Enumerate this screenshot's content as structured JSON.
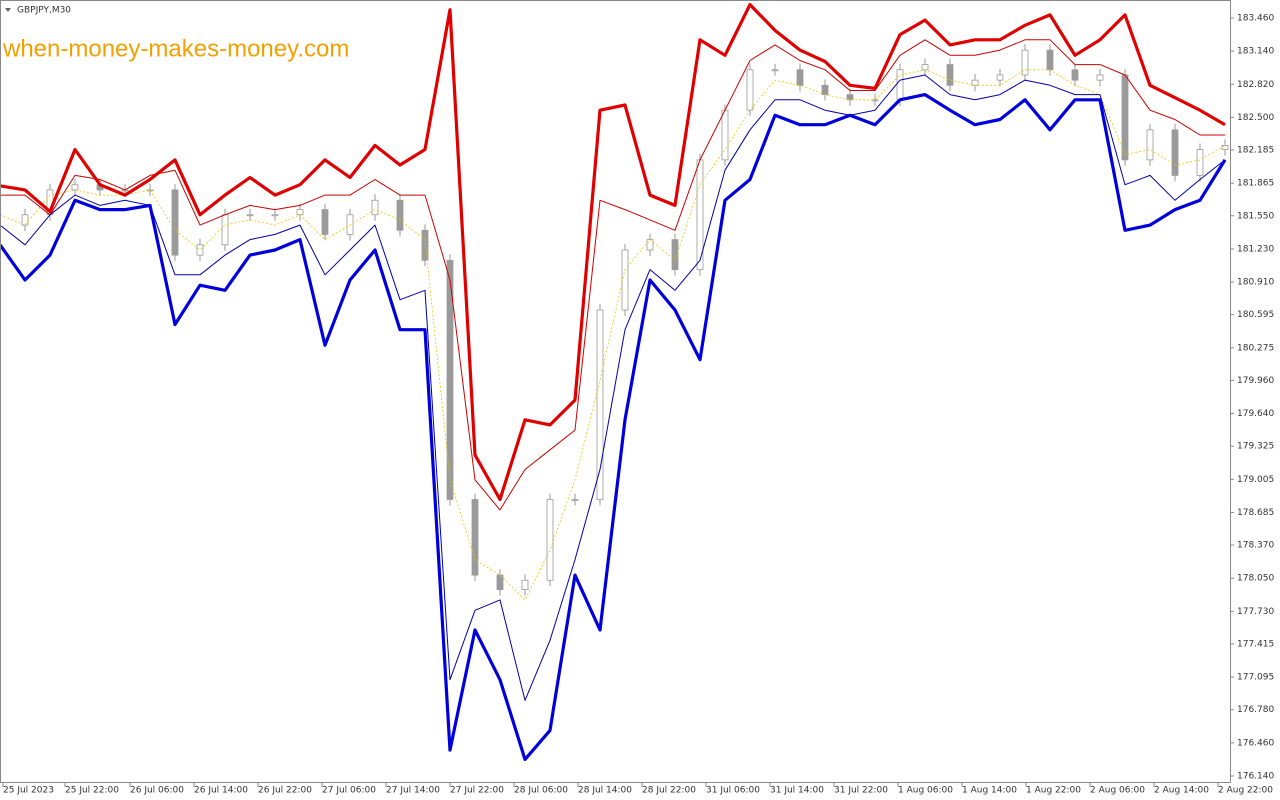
{
  "chart_data": {
    "type": "line",
    "symbol": "GBPJPY,M30",
    "watermark": "when-money-makes-money.com",
    "xlim": [
      0,
      49.2
    ],
    "xticks": [
      {
        "value": 0.12,
        "label": "25 Jul 2023"
      },
      {
        "value": 2.6,
        "label": "25 Jul 22:00"
      },
      {
        "value": 5.2,
        "label": "26 Jul 06:00"
      },
      {
        "value": 7.76,
        "label": "26 Jul 14:00"
      },
      {
        "value": 10.32,
        "label": "26 Jul 22:00"
      },
      {
        "value": 12.88,
        "label": "27 Jul 06:00"
      },
      {
        "value": 15.44,
        "label": "27 Jul 14:00"
      },
      {
        "value": 18,
        "label": "27 Jul 22:00"
      },
      {
        "value": 20.56,
        "label": "28 Jul 06:00"
      },
      {
        "value": 23.12,
        "label": "28 Jul 14:00"
      },
      {
        "value": 25.68,
        "label": "28 Jul 22:00"
      },
      {
        "value": 28.24,
        "label": "31 Jul 06:00"
      },
      {
        "value": 30.8,
        "label": "31 Jul 14:00"
      },
      {
        "value": 33.36,
        "label": "31 Jul 22:00"
      },
      {
        "value": 35.92,
        "label": "1 Aug 06:00"
      },
      {
        "value": 38.48,
        "label": "1 Aug 14:00"
      },
      {
        "value": 41.04,
        "label": "1 Aug 22:00"
      },
      {
        "value": 43.6,
        "label": "2 Aug 06:00"
      },
      {
        "value": 46.16,
        "label": "2 Aug 14:00"
      },
      {
        "value": 48.72,
        "label": "2 Aug 22:00"
      }
    ],
    "ylim": [
      176.072,
      183.634
    ],
    "yticks": [
      {
        "value": 183.46,
        "label": "183.460"
      },
      {
        "value": 183.14,
        "label": "183.140"
      },
      {
        "value": 182.82,
        "label": "182.820"
      },
      {
        "value": 182.5,
        "label": "182.500"
      },
      {
        "value": 182.185,
        "label": "182.185"
      },
      {
        "value": 181.865,
        "label": "181.865"
      },
      {
        "value": 181.55,
        "label": "181.550"
      },
      {
        "value": 181.23,
        "label": "181.230"
      },
      {
        "value": 180.91,
        "label": "180.910"
      },
      {
        "value": 180.595,
        "label": "180.595"
      },
      {
        "value": 180.275,
        "label": "180.275"
      },
      {
        "value": 179.96,
        "label": "179.960"
      },
      {
        "value": 179.64,
        "label": "179.640"
      },
      {
        "value": 179.325,
        "label": "179.325"
      },
      {
        "value": 179.005,
        "label": "179.005"
      },
      {
        "value": 178.685,
        "label": "178.685"
      },
      {
        "value": 178.37,
        "label": "178.370"
      },
      {
        "value": 178.05,
        "label": "178.050"
      },
      {
        "value": 177.73,
        "label": "177.730"
      },
      {
        "value": 177.415,
        "label": "177.415"
      },
      {
        "value": 177.095,
        "label": "177.095"
      },
      {
        "value": 176.78,
        "label": "176.780"
      },
      {
        "value": 176.46,
        "label": "176.460"
      },
      {
        "value": 176.14,
        "label": "176.140"
      }
    ],
    "series": [
      {
        "style": "bars",
        "color": "#9a9a9a",
        "values": [
          181.46,
          181.56,
          181.8,
          181.85,
          181.8,
          181.8,
          181.8,
          181.17,
          181.27,
          181.56,
          181.56,
          181.56,
          181.61,
          181.37,
          181.56,
          181.7,
          181.41,
          181.12,
          178.81,
          178.08,
          177.94,
          178.03,
          178.81,
          178.81,
          180.64,
          181.22,
          181.32,
          181.03,
          182.09,
          182.57,
          182.96,
          182.96,
          182.81,
          182.72,
          182.67,
          182.67,
          182.96,
          183.01,
          182.81,
          182.86,
          182.91,
          183.15,
          182.96,
          182.86,
          182.91,
          182.09,
          182.38,
          181.94,
          182.19,
          182.23
        ]
      },
      {
        "style": "line",
        "color": "#e6c800",
        "width": 0.8,
        "dash": "2,2",
        "values": [
          181.56,
          181.46,
          181.75,
          181.8,
          181.75,
          181.75,
          181.8,
          181.41,
          181.22,
          181.46,
          181.51,
          181.46,
          181.56,
          181.32,
          181.46,
          181.61,
          181.51,
          181.32,
          179.0,
          178.23,
          178.08,
          177.84,
          178.32,
          179.0,
          179.96,
          181.03,
          181.32,
          181.12,
          181.85,
          182.19,
          182.57,
          182.86,
          182.81,
          182.72,
          182.67,
          182.67,
          182.91,
          182.96,
          182.86,
          182.81,
          182.81,
          182.96,
          182.96,
          182.81,
          182.72,
          182.14,
          182.19,
          182.04,
          182.09,
          182.23
        ]
      },
      {
        "style": "line",
        "color": "#cc0000",
        "width": 1,
        "values": [
          181.75,
          181.75,
          181.56,
          181.94,
          181.9,
          181.8,
          181.94,
          181.99,
          181.46,
          181.56,
          181.65,
          181.61,
          181.65,
          181.75,
          181.75,
          181.9,
          181.75,
          181.75,
          180.93,
          179.0,
          178.71,
          179.1,
          179.29,
          179.48,
          181.7,
          181.61,
          181.51,
          181.41,
          182.09,
          182.57,
          183.05,
          183.2,
          183.05,
          182.96,
          182.76,
          182.76,
          183.1,
          183.25,
          183.1,
          183.1,
          183.15,
          183.25,
          183.25,
          183.01,
          183.01,
          182.91,
          182.57,
          182.48,
          182.33,
          182.33
        ]
      },
      {
        "style": "line",
        "color": "#0000aa",
        "width": 1,
        "values": [
          181.46,
          181.27,
          181.56,
          181.75,
          181.65,
          181.7,
          181.65,
          180.98,
          180.98,
          181.17,
          181.32,
          181.37,
          181.46,
          180.98,
          181.22,
          181.46,
          180.74,
          180.83,
          177.07,
          177.74,
          177.84,
          176.87,
          177.45,
          178.23,
          179.1,
          180.45,
          181.03,
          180.83,
          181.12,
          181.99,
          182.38,
          182.67,
          182.67,
          182.57,
          182.52,
          182.57,
          182.86,
          182.91,
          182.72,
          182.67,
          182.72,
          182.86,
          182.81,
          182.72,
          182.72,
          181.85,
          181.94,
          181.7,
          181.9,
          182.09
        ]
      },
      {
        "style": "line",
        "color": "#e00000",
        "width": 3.2,
        "values": [
          181.84,
          181.8,
          181.59,
          182.19,
          181.85,
          181.75,
          181.9,
          182.09,
          181.56,
          181.75,
          181.92,
          181.75,
          181.85,
          182.09,
          181.92,
          182.23,
          182.04,
          182.19,
          183.54,
          179.24,
          178.81,
          179.58,
          179.53,
          179.77,
          182.57,
          182.62,
          181.75,
          181.65,
          183.25,
          183.1,
          183.59,
          183.34,
          183.15,
          183.04,
          182.81,
          182.78,
          183.3,
          183.44,
          183.2,
          183.25,
          183.25,
          183.39,
          183.49,
          183.1,
          183.25,
          183.49,
          182.81,
          182.69,
          182.57,
          182.43
        ]
      },
      {
        "style": "line",
        "color": "#0000dd",
        "width": 3.2,
        "values": [
          181.27,
          180.93,
          181.17,
          181.7,
          181.61,
          181.61,
          181.65,
          180.5,
          180.88,
          180.83,
          181.17,
          181.22,
          181.32,
          180.3,
          180.93,
          181.22,
          180.45,
          180.45,
          176.39,
          177.55,
          177.07,
          176.3,
          176.58,
          178.08,
          177.55,
          179.58,
          180.93,
          180.64,
          180.16,
          181.7,
          181.9,
          182.52,
          182.43,
          182.43,
          182.52,
          182.43,
          182.67,
          182.72,
          182.57,
          182.43,
          182.48,
          182.67,
          182.38,
          182.67,
          182.67,
          181.41,
          181.46,
          181.61,
          181.7,
          182.09
        ]
      }
    ]
  }
}
